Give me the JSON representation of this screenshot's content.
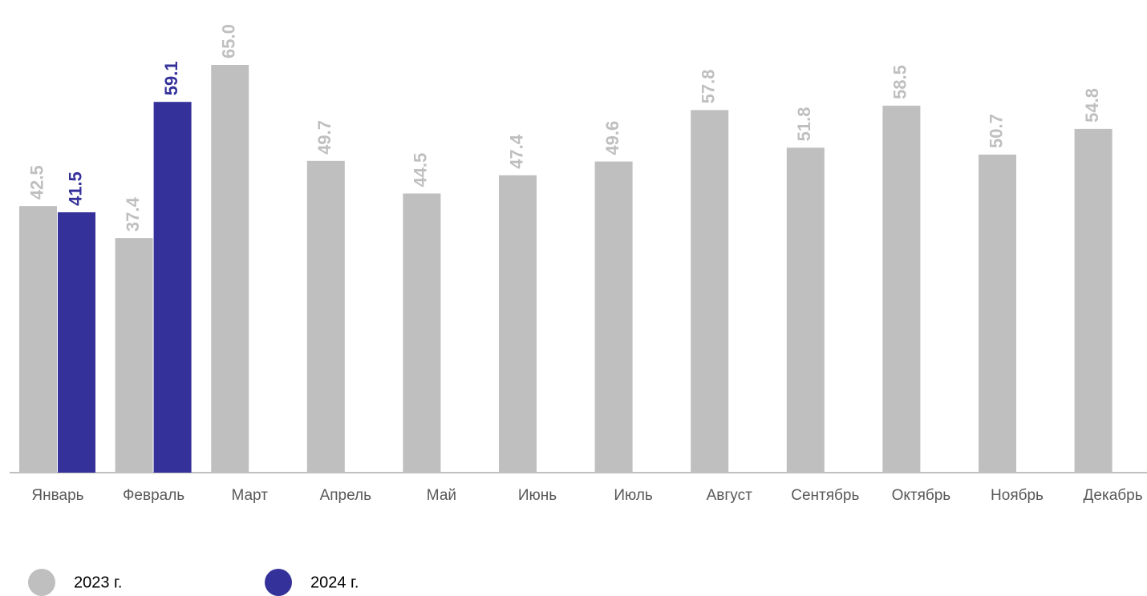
{
  "chart_data": {
    "type": "bar",
    "categories": [
      "Январь",
      "Февраль",
      "Март",
      "Апрель",
      "Май",
      "Июнь",
      "Июль",
      "Август",
      "Сентябрь",
      "Октябрь",
      "Ноябрь",
      "Декабрь"
    ],
    "series": [
      {
        "name": "2023 г.",
        "color": "#bfbfbf",
        "values": [
          42.5,
          37.4,
          65.0,
          49.7,
          44.5,
          47.4,
          49.6,
          57.8,
          51.8,
          58.5,
          50.7,
          54.8
        ],
        "value_labels": [
          "42.5",
          "37.4",
          "65.0",
          "49.7",
          "44.5",
          "47.4",
          "49.6",
          "57.8",
          "51.8",
          "58.5",
          "50.7",
          "54.8"
        ]
      },
      {
        "name": "2024 г.",
        "color": "#35319a",
        "values": [
          41.5,
          59.1,
          null,
          null,
          null,
          null,
          null,
          null,
          null,
          null,
          null,
          null
        ],
        "value_labels": [
          "41.5",
          "59.1",
          null,
          null,
          null,
          null,
          null,
          null,
          null,
          null,
          null,
          null
        ]
      }
    ],
    "legend": "bottom-left"
  }
}
